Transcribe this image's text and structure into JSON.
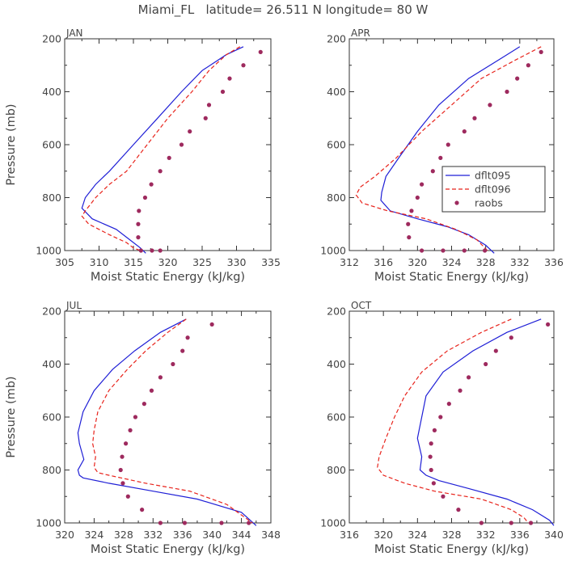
{
  "figure": {
    "title": "Miami_FL   latitude= 26.511 N longitude= 80 W"
  },
  "colors": {
    "dflt095": "#1f1fd6",
    "dflt096": "#e8231b",
    "raobs": "#9e2a5e",
    "axis": "#333333",
    "text": "#444444"
  },
  "chart_data": [
    {
      "type": "line",
      "panel": "JAN",
      "xlabel": "Moist Static Energy (kJ/kg)",
      "ylabel": "Pressure (mb)",
      "xlim": [
        305,
        335
      ],
      "ylim": [
        1000,
        200
      ],
      "xticks": [
        305,
        310,
        315,
        320,
        325,
        330,
        335
      ],
      "yticks": [
        200,
        400,
        600,
        800,
        1000
      ],
      "legend": false,
      "series": [
        {
          "name": "dflt095",
          "style": "solid",
          "x": [
            331.0,
            328.5,
            325.0,
            322.0,
            318.5,
            315.0,
            311.5,
            309.5,
            308.0,
            307.5,
            309.0,
            312.5,
            314.5,
            316.0,
            316.8
          ],
          "y": [
            230,
            260,
            320,
            400,
            500,
            600,
            700,
            750,
            800,
            840,
            880,
            920,
            960,
            990,
            1010
          ]
        },
        {
          "name": "dflt096",
          "style": "dashed",
          "x": [
            330.5,
            328.5,
            326.0,
            323.5,
            320.0,
            317.0,
            314.0,
            311.5,
            309.5,
            308.0,
            307.5,
            308.5,
            311.5,
            314.0,
            315.0,
            316.0
          ],
          "y": [
            230,
            260,
            320,
            400,
            500,
            600,
            700,
            750,
            800,
            850,
            870,
            900,
            940,
            970,
            990,
            1000
          ]
        },
        {
          "name": "raobs",
          "style": "points",
          "x": [
            333.5,
            331.0,
            329.0,
            328.0,
            326.0,
            325.5,
            323.2,
            322.0,
            320.2,
            318.9,
            317.6,
            316.7,
            315.8,
            315.7,
            315.7,
            316.1,
            317.7,
            318.9
          ],
          "y": [
            250,
            300,
            350,
            400,
            450,
            500,
            550,
            600,
            650,
            700,
            750,
            800,
            850,
            900,
            950,
            1000,
            1000,
            1000
          ]
        }
      ]
    },
    {
      "type": "line",
      "panel": "APR",
      "xlabel": "Moist Static Energy (kJ/kg)",
      "ylabel": "",
      "xlim": [
        312,
        336
      ],
      "ylim": [
        1000,
        200
      ],
      "xticks": [
        312,
        316,
        320,
        324,
        328,
        332,
        336
      ],
      "yticks": [
        200,
        400,
        600,
        800,
        1000
      ],
      "legend": true,
      "legend_position": "center-right",
      "series": [
        {
          "name": "dflt095",
          "style": "solid",
          "x": [
            332.0,
            329.5,
            326.0,
            322.5,
            320.0,
            317.8,
            316.3,
            315.8,
            315.7,
            316.8,
            320.0,
            323.5,
            326.0,
            328.0,
            329.0
          ],
          "y": [
            230,
            280,
            350,
            450,
            550,
            650,
            720,
            780,
            810,
            850,
            880,
            910,
            940,
            980,
            1010
          ]
        },
        {
          "name": "dflt096",
          "style": "dashed",
          "x": [
            334.5,
            331.5,
            327.5,
            324.0,
            320.5,
            317.5,
            315.0,
            313.3,
            312.8,
            313.5,
            316.5,
            321.0,
            324.5,
            327.0,
            328.2
          ],
          "y": [
            230,
            280,
            350,
            450,
            550,
            650,
            720,
            760,
            790,
            820,
            850,
            880,
            920,
            960,
            1000
          ]
        },
        {
          "name": "raobs",
          "style": "points",
          "x": [
            334.5,
            333.0,
            331.7,
            330.5,
            328.5,
            326.7,
            325.5,
            323.6,
            322.7,
            321.8,
            320.5,
            320.0,
            319.3,
            318.9,
            319.0,
            320.5,
            323.0,
            325.5,
            327.9
          ],
          "y": [
            250,
            300,
            350,
            400,
            450,
            500,
            550,
            600,
            650,
            700,
            750,
            800,
            850,
            900,
            950,
            1000,
            1000,
            1000,
            1000
          ]
        }
      ]
    },
    {
      "type": "line",
      "panel": "JUL",
      "xlabel": "Moist Static Energy (kJ/kg)",
      "ylabel": "Pressure (mb)",
      "xlim": [
        320,
        348
      ],
      "ylim": [
        1000,
        200
      ],
      "xticks": [
        320,
        324,
        328,
        332,
        336,
        340,
        344,
        348
      ],
      "yticks": [
        200,
        400,
        600,
        800,
        1000
      ],
      "legend": false,
      "series": [
        {
          "name": "dflt095",
          "style": "solid",
          "x": [
            336.5,
            333.0,
            329.5,
            326.5,
            324.0,
            322.5,
            321.8,
            322.0,
            322.6,
            321.8,
            322.0,
            322.5,
            326.0,
            332.0,
            338.0,
            344.0,
            346.0
          ],
          "y": [
            230,
            280,
            350,
            420,
            500,
            580,
            660,
            700,
            760,
            800,
            820,
            830,
            850,
            880,
            910,
            960,
            1010
          ]
        },
        {
          "name": "dflt096",
          "style": "dashed",
          "x": [
            336.5,
            334.0,
            331.0,
            328.5,
            326.0,
            324.5,
            324.0,
            323.8,
            324.2,
            324.0,
            324.5,
            326.0,
            331.0,
            337.0,
            342.0,
            345.5
          ],
          "y": [
            230,
            280,
            350,
            420,
            500,
            580,
            650,
            700,
            750,
            790,
            810,
            820,
            850,
            880,
            930,
            1000
          ]
        },
        {
          "name": "raobs",
          "style": "points",
          "x": [
            340.0,
            336.7,
            336.0,
            334.7,
            333.0,
            331.8,
            330.8,
            329.6,
            328.9,
            328.3,
            327.8,
            327.6,
            327.9,
            328.6,
            330.5,
            333.0,
            336.3,
            341.3,
            345.0
          ],
          "y": [
            250,
            300,
            350,
            400,
            450,
            500,
            550,
            600,
            650,
            700,
            750,
            800,
            850,
            900,
            950,
            1000,
            1000,
            1000,
            1000
          ]
        }
      ]
    },
    {
      "type": "line",
      "panel": "OCT",
      "xlabel": "Moist Static Energy (kJ/kg)",
      "ylabel": "",
      "xlim": [
        316,
        340
      ],
      "ylim": [
        1000,
        200
      ],
      "xticks": [
        316,
        320,
        324,
        328,
        332,
        336,
        340
      ],
      "yticks": [
        200,
        400,
        600,
        800,
        1000
      ],
      "legend": false,
      "series": [
        {
          "name": "dflt095",
          "style": "solid",
          "x": [
            338.5,
            334.5,
            330.5,
            327.0,
            325.0,
            324.5,
            324.0,
            324.5,
            324.3,
            325.0,
            326.5,
            330.0,
            334.5,
            337.5,
            339.5,
            340.0
          ],
          "y": [
            230,
            280,
            350,
            430,
            520,
            600,
            680,
            750,
            800,
            820,
            840,
            870,
            910,
            950,
            990,
            1010
          ]
        },
        {
          "name": "dflt096",
          "style": "dashed",
          "x": [
            335.0,
            331.5,
            327.5,
            324.5,
            322.5,
            321.3,
            320.3,
            319.5,
            319.3,
            320.0,
            322.5,
            326.0,
            331.5,
            335.0,
            336.5,
            337.0
          ],
          "y": [
            230,
            280,
            350,
            430,
            520,
            600,
            680,
            750,
            790,
            820,
            850,
            880,
            910,
            950,
            980,
            1000
          ]
        },
        {
          "name": "raobs",
          "style": "points",
          "x": [
            339.3,
            335.0,
            333.2,
            332.0,
            330.0,
            329.0,
            327.7,
            326.7,
            326.0,
            325.6,
            325.5,
            325.6,
            325.9,
            327.0,
            328.8,
            331.5,
            335.0,
            337.3
          ],
          "y": [
            250,
            300,
            350,
            400,
            450,
            500,
            550,
            600,
            650,
            700,
            750,
            800,
            850,
            900,
            950,
            1000,
            1000,
            1000
          ]
        }
      ]
    }
  ]
}
